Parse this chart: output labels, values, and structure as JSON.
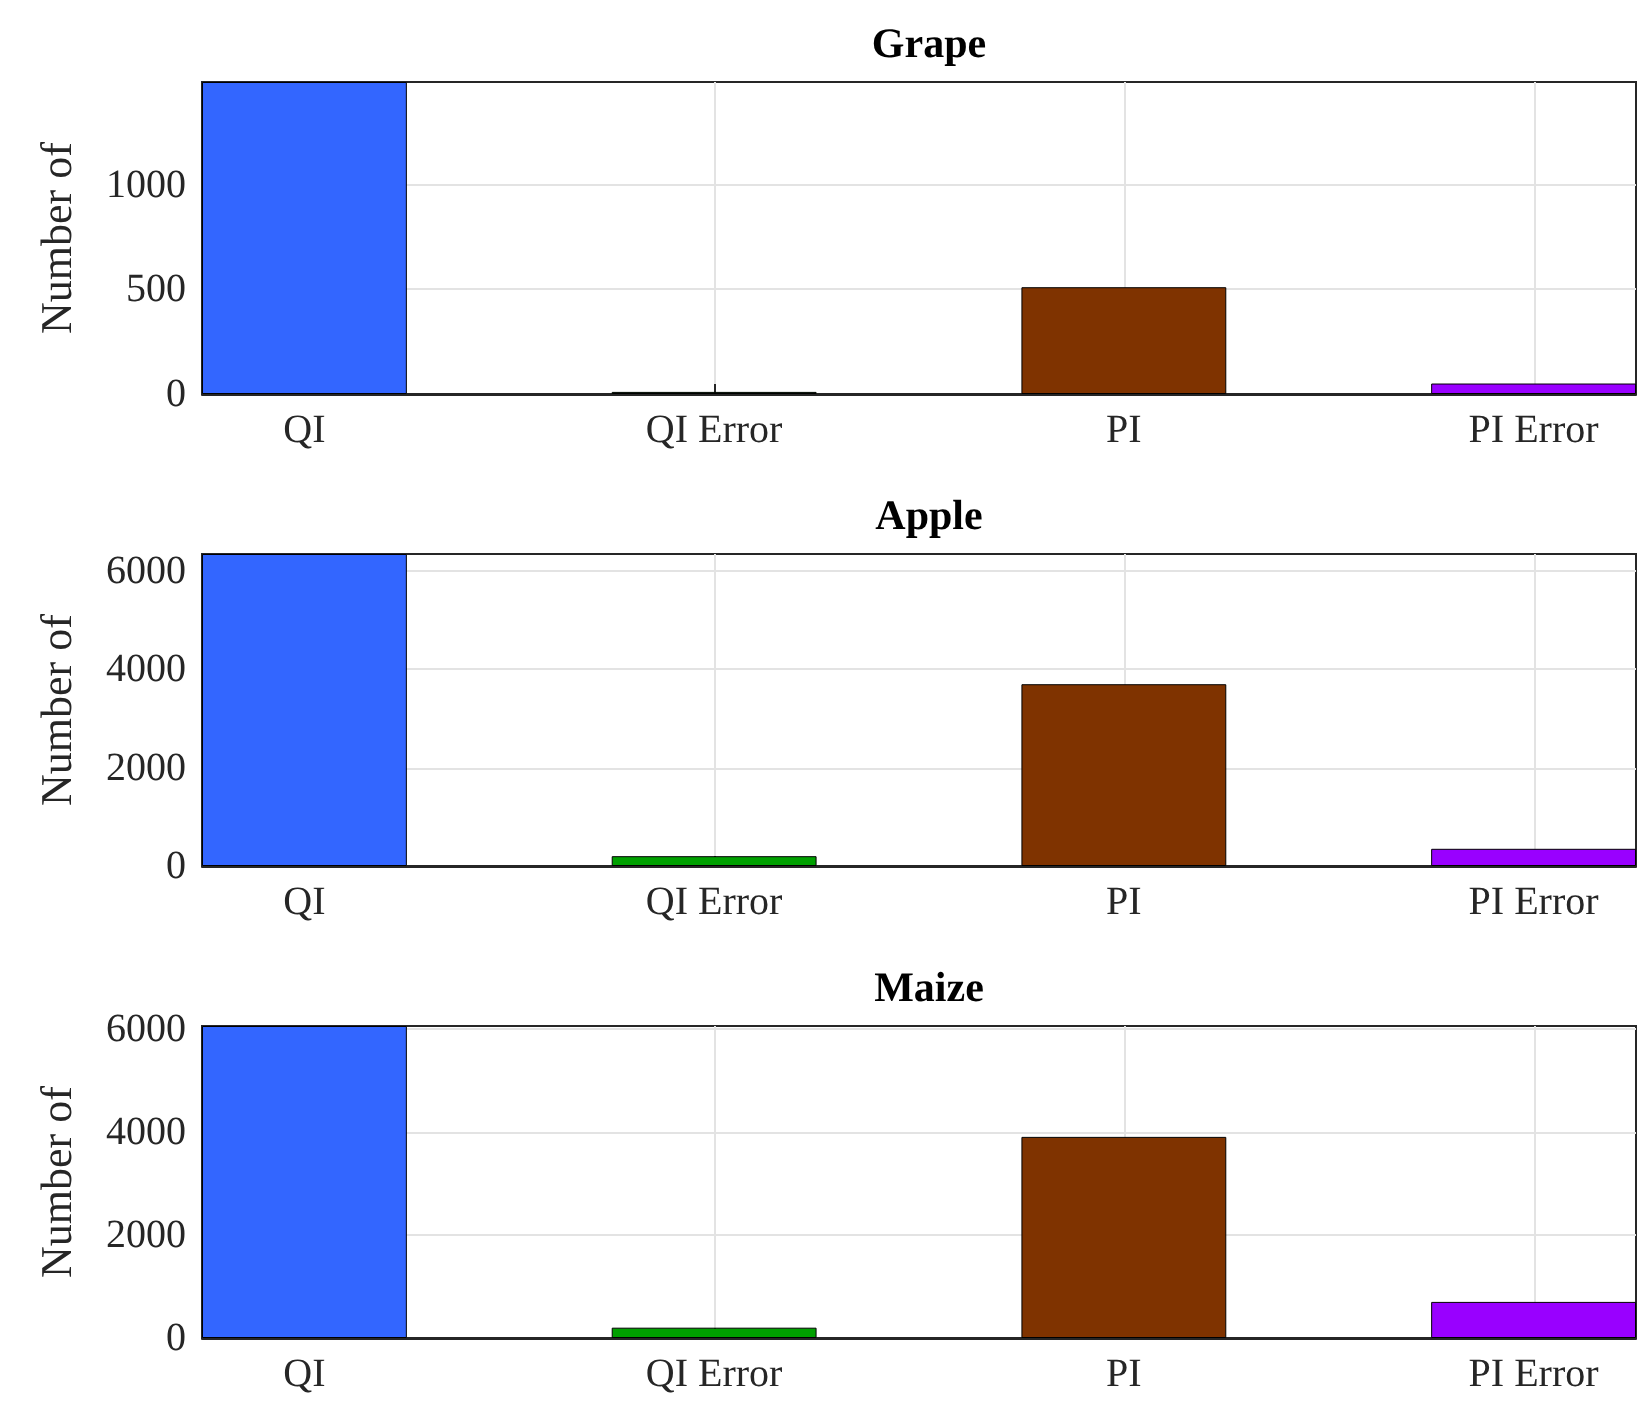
{
  "chart_data": [
    {
      "type": "bar",
      "title": "Grape",
      "ylabel": "Number of",
      "categories": [
        "QI",
        "QI Error",
        "PI",
        "PI Error"
      ],
      "values": [
        1490,
        10,
        510,
        50
      ],
      "colors": [
        "#3366ff",
        "#00a000",
        "#7f3300",
        "#9900ff"
      ],
      "ylim": [
        0,
        1490
      ],
      "yticks": [
        0,
        500,
        1000
      ],
      "grid": true
    },
    {
      "type": "bar",
      "title": "Apple",
      "ylabel": "Number of",
      "categories": [
        "QI",
        "QI Error",
        "PI",
        "PI Error"
      ],
      "values": [
        6350,
        200,
        3700,
        350
      ],
      "colors": [
        "#3366ff",
        "#00a000",
        "#7f3300",
        "#9900ff"
      ],
      "ylim": [
        0,
        6350
      ],
      "yticks": [
        0,
        2000,
        4000,
        6000
      ],
      "grid": true
    },
    {
      "type": "bar",
      "title": "Maize",
      "ylabel": "Number of",
      "categories": [
        "QI",
        "QI Error",
        "PI",
        "PI Error"
      ],
      "values": [
        6050,
        200,
        3900,
        700
      ],
      "colors": [
        "#3366ff",
        "#00a000",
        "#7f3300",
        "#9900ff"
      ],
      "ylim": [
        0,
        6050
      ],
      "yticks": [
        0,
        2000,
        4000,
        6000
      ],
      "grid": true
    }
  ]
}
